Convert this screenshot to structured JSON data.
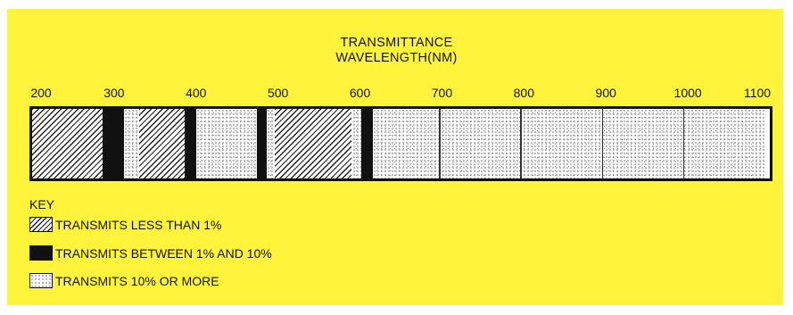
{
  "title": {
    "line1": "TRANSMITTANCE",
    "line2": "WAVELENGTH(NM)"
  },
  "axis": {
    "unit": "NM",
    "range": [
      200,
      1100
    ],
    "ticks": [
      {
        "value": 200,
        "label": "200"
      },
      {
        "value": 300,
        "label": "300"
      },
      {
        "value": 400,
        "label": "400"
      },
      {
        "value": 500,
        "label": "500"
      },
      {
        "value": 600,
        "label": "600"
      },
      {
        "value": 700,
        "label": "700"
      },
      {
        "value": 800,
        "label": "800"
      },
      {
        "value": 900,
        "label": "900"
      },
      {
        "value": 1000,
        "label": "1000"
      },
      {
        "value": 1100,
        "label": "1100"
      }
    ]
  },
  "bands": [
    {
      "from": 200,
      "to": 287,
      "level": "low"
    },
    {
      "from": 287,
      "to": 313,
      "level": "mid"
    },
    {
      "from": 313,
      "to": 332,
      "level": "high"
    },
    {
      "from": 332,
      "to": 387,
      "level": "low"
    },
    {
      "from": 387,
      "to": 402,
      "level": "mid"
    },
    {
      "from": 402,
      "to": 476,
      "level": "high"
    },
    {
      "from": 476,
      "to": 488,
      "level": "mid"
    },
    {
      "from": 488,
      "to": 498,
      "level": "high"
    },
    {
      "from": 498,
      "to": 593,
      "level": "low"
    },
    {
      "from": 593,
      "to": 605,
      "level": "high"
    },
    {
      "from": 605,
      "to": 619,
      "level": "mid"
    },
    {
      "from": 619,
      "to": 1100,
      "level": "high"
    }
  ],
  "key": {
    "title": "KEY",
    "items": [
      {
        "level": "low",
        "label": "TRANSMITS LESS THAN 1%"
      },
      {
        "level": "mid",
        "label": "TRANSMITS BETWEEN 1% AND 10%"
      },
      {
        "level": "high",
        "label": "TRANSMITS 10% OR MORE"
      }
    ]
  },
  "colors": {
    "background": "#fff43b",
    "ink": "#111111"
  }
}
